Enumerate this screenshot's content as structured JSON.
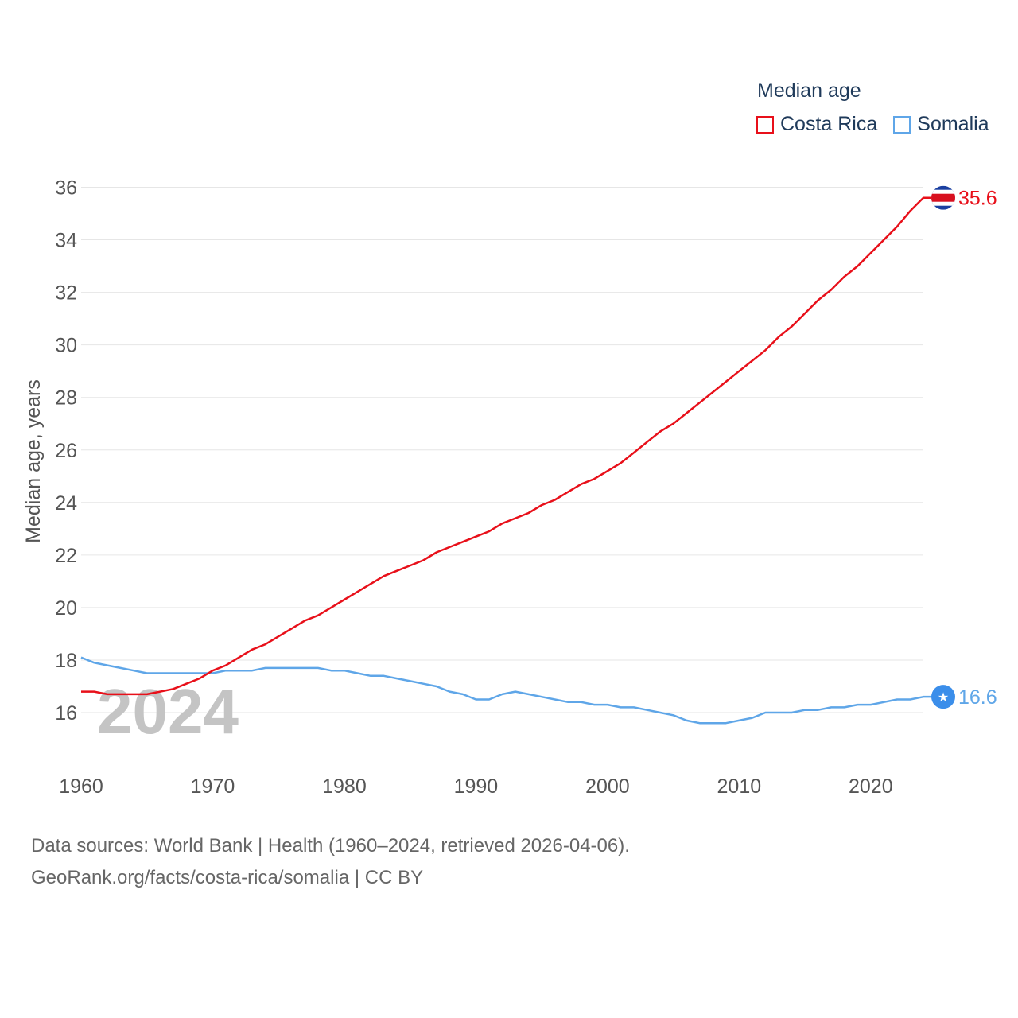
{
  "chart_data": {
    "type": "line",
    "title": "Median age",
    "xlabel": "",
    "ylabel": "Median age, years",
    "xlim": [
      1960,
      2024
    ],
    "ylim": [
      14.5,
      36.5
    ],
    "x_ticks": [
      1960,
      1970,
      1980,
      1990,
      2000,
      2010,
      2020
    ],
    "y_ticks": [
      16,
      18,
      20,
      22,
      24,
      26,
      28,
      30,
      32,
      34,
      36
    ],
    "grid": true,
    "legend_position": "top-right",
    "watermark_year": "2024",
    "x": [
      1960,
      1961,
      1962,
      1963,
      1964,
      1965,
      1966,
      1967,
      1968,
      1969,
      1970,
      1971,
      1972,
      1973,
      1974,
      1975,
      1976,
      1977,
      1978,
      1979,
      1980,
      1981,
      1982,
      1983,
      1984,
      1985,
      1986,
      1987,
      1988,
      1989,
      1990,
      1991,
      1992,
      1993,
      1994,
      1995,
      1996,
      1997,
      1998,
      1999,
      2000,
      2001,
      2002,
      2003,
      2004,
      2005,
      2006,
      2007,
      2008,
      2009,
      2010,
      2011,
      2012,
      2013,
      2014,
      2015,
      2016,
      2017,
      2018,
      2019,
      2020,
      2021,
      2022,
      2023,
      2024
    ],
    "series": [
      {
        "name": "Costa Rica",
        "color": "#e8101a",
        "end_label": "35.6",
        "values": [
          16.8,
          16.8,
          16.7,
          16.7,
          16.7,
          16.7,
          16.8,
          16.9,
          17.1,
          17.3,
          17.6,
          17.8,
          18.1,
          18.4,
          18.6,
          18.9,
          19.2,
          19.5,
          19.7,
          20.0,
          20.3,
          20.6,
          20.9,
          21.2,
          21.4,
          21.6,
          21.8,
          22.1,
          22.3,
          22.5,
          22.7,
          22.9,
          23.2,
          23.4,
          23.6,
          23.9,
          24.1,
          24.4,
          24.7,
          24.9,
          25.2,
          25.5,
          25.9,
          26.3,
          26.7,
          27.0,
          27.4,
          27.8,
          28.2,
          28.6,
          29.0,
          29.4,
          29.8,
          30.3,
          30.7,
          31.2,
          31.7,
          32.1,
          32.6,
          33.0,
          33.5,
          34.0,
          34.5,
          35.1,
          35.6
        ]
      },
      {
        "name": "Somalia",
        "color": "#5fa6e8",
        "end_label": "16.6",
        "values": [
          18.1,
          17.9,
          17.8,
          17.7,
          17.6,
          17.5,
          17.5,
          17.5,
          17.5,
          17.5,
          17.5,
          17.6,
          17.6,
          17.6,
          17.7,
          17.7,
          17.7,
          17.7,
          17.7,
          17.6,
          17.6,
          17.5,
          17.4,
          17.4,
          17.3,
          17.2,
          17.1,
          17.0,
          16.8,
          16.7,
          16.5,
          16.5,
          16.7,
          16.8,
          16.7,
          16.6,
          16.5,
          16.4,
          16.4,
          16.3,
          16.3,
          16.2,
          16.2,
          16.1,
          16.0,
          15.9,
          15.7,
          15.6,
          15.6,
          15.6,
          15.7,
          15.8,
          16.0,
          16.0,
          16.0,
          16.1,
          16.1,
          16.2,
          16.2,
          16.3,
          16.3,
          16.4,
          16.5,
          16.5,
          16.6
        ]
      }
    ]
  },
  "footer": {
    "line1": "Data sources: World Bank | Health (1960–2024, retrieved 2026-04-06).",
    "line2": "GeoRank.org/facts/costa-rica/somalia | CC BY"
  }
}
